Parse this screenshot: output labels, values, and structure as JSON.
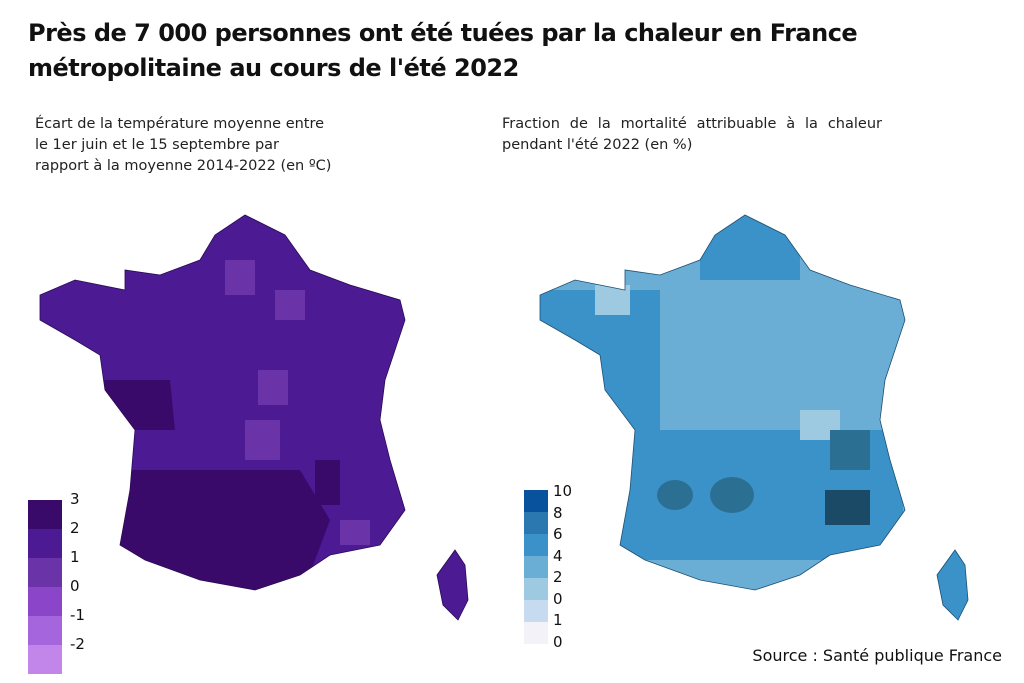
{
  "title": "Près de 7 000 personnes ont été tuées par la chaleur en France métropolitaine au cours de l'été 2022",
  "left_map": {
    "subtitle": "Écart de la température moyenne entre le 1er juin et le 15 septembre par rapport à la moyenne 2014-2022 (en ºC)",
    "legend": {
      "labels": [
        "3",
        "2",
        "1",
        "0",
        "-1",
        "-2"
      ],
      "colors": [
        "#3a0a6b",
        "#4c1a92",
        "#6a34a8",
        "#8a45c9",
        "#a565dc",
        "#c285ea"
      ]
    }
  },
  "right_map": {
    "subtitle": "Fraction de la mortalité attribuable à la chaleur pendant l'été 2022 (en %)",
    "legend": {
      "labels": [
        "10",
        "8",
        "6",
        "4",
        "2",
        "0",
        "1",
        "0"
      ],
      "colors": [
        "#08519c",
        "#2b77b0",
        "#3a92c8",
        "#6aaed6",
        "#9ecae1",
        "#c6dbef",
        "#f3f2f8"
      ]
    }
  },
  "source": "Source : Santé publique France"
}
